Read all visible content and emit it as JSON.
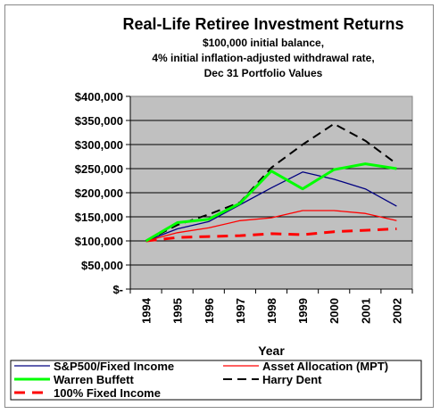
{
  "chart_data": {
    "type": "line",
    "title": "Real-Life Retiree Investment Returns",
    "subtitle_lines": [
      "$100,000 initial balance,",
      "4% initial inflation-adjusted withdrawal rate,",
      "Dec 31 Portfolio Values"
    ],
    "xlabel": "Year",
    "ylabel": "",
    "categories": [
      "1994",
      "1995",
      "1996",
      "1997",
      "1998",
      "1999",
      "2000",
      "2001",
      "2002"
    ],
    "ylim": [
      0,
      400000
    ],
    "y_ticks": [
      "$-",
      "$50,000",
      "$100,000",
      "$150,000",
      "$200,000",
      "$250,000",
      "$300,000",
      "$350,000",
      "$400,000"
    ],
    "grid": true,
    "plot_background": "#c0c0c0",
    "legend_position": "bottom",
    "series": [
      {
        "name": "S&P500/Fixed Income",
        "color": "#000080",
        "dash": "solid",
        "width": "thin",
        "values": [
          100000,
          125000,
          140000,
          175000,
          210000,
          243000,
          228000,
          208000,
          172000
        ]
      },
      {
        "name": "Asset Allocation (MPT)",
        "color": "#ff0000",
        "dash": "solid",
        "width": "thin",
        "values": [
          100000,
          117000,
          127000,
          142000,
          148000,
          163000,
          163000,
          157000,
          142000
        ]
      },
      {
        "name": "Warren Buffett",
        "color": "#00ff00",
        "dash": "solid",
        "width": "thick",
        "values": [
          100000,
          138000,
          145000,
          178000,
          245000,
          208000,
          248000,
          260000,
          250000
        ]
      },
      {
        "name": "Harry Dent",
        "color": "#000000",
        "dash": "dashed",
        "width": "medium",
        "values": [
          100000,
          133000,
          155000,
          180000,
          252000,
          300000,
          343000,
          308000,
          260000
        ]
      },
      {
        "name": "100% Fixed Income",
        "color": "#ff0000",
        "dash": "dashed",
        "width": "thick",
        "values": [
          100000,
          107000,
          109000,
          111000,
          115000,
          113000,
          119000,
          122000,
          125000
        ]
      }
    ]
  }
}
